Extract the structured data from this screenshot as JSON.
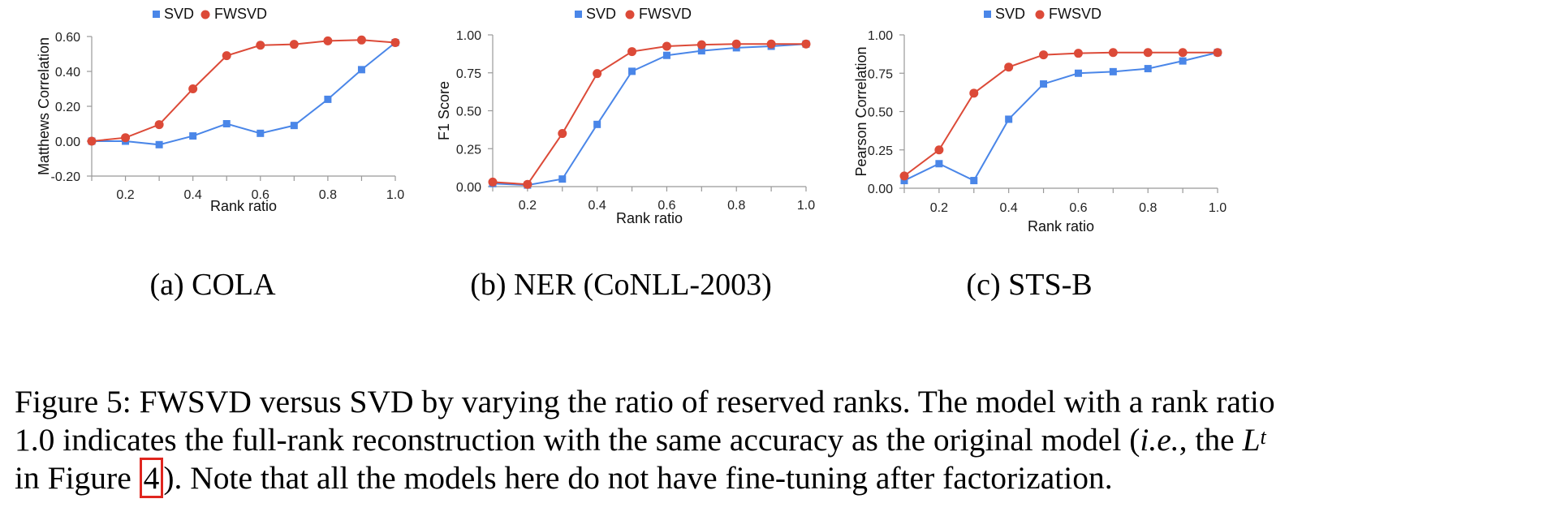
{
  "colors": {
    "svd": "#4a86e8",
    "fwsvd": "#dc4a38",
    "axis": "#999999",
    "ref_box": "#e0261f"
  },
  "legend": {
    "svd": "SVD",
    "fwsvd": "FWSVD"
  },
  "chart_data": [
    {
      "type": "line",
      "subcaption": "(a) COLA",
      "xlabel": "Rank ratio",
      "ylabel": "Matthews Correlation",
      "xlim": [
        0.1,
        1.0
      ],
      "ylim": [
        -0.2,
        0.6
      ],
      "xticks": [
        "0.2",
        "0.4",
        "0.6",
        "0.8",
        "1.0"
      ],
      "yticks": [
        "-0.20",
        "0.00",
        "0.20",
        "0.40",
        "0.60"
      ],
      "x": [
        0.1,
        0.2,
        0.3,
        0.4,
        0.5,
        0.6,
        0.7,
        0.8,
        0.9,
        1.0
      ],
      "series": [
        {
          "name": "SVD",
          "values": [
            0.0,
            0.0,
            -0.02,
            0.03,
            0.1,
            0.045,
            0.09,
            0.24,
            0.41,
            0.565
          ]
        },
        {
          "name": "FWSVD",
          "values": [
            0.0,
            0.02,
            0.095,
            0.3,
            0.49,
            0.55,
            0.555,
            0.575,
            0.58,
            0.565
          ]
        }
      ]
    },
    {
      "type": "line",
      "subcaption": "(b) NER (CoNLL-2003)",
      "xlabel": "Rank ratio",
      "ylabel": "F1 Score",
      "xlim": [
        0.1,
        1.0
      ],
      "ylim": [
        0.0,
        1.0
      ],
      "xticks": [
        "0.2",
        "0.4",
        "0.6",
        "0.8",
        "1.0"
      ],
      "yticks": [
        "0.00",
        "0.25",
        "0.50",
        "0.75",
        "1.00"
      ],
      "x": [
        0.1,
        0.2,
        0.3,
        0.4,
        0.5,
        0.6,
        0.7,
        0.8,
        0.9,
        1.0
      ],
      "series": [
        {
          "name": "SVD",
          "values": [
            0.02,
            0.01,
            0.05,
            0.41,
            0.76,
            0.865,
            0.895,
            0.915,
            0.925,
            0.94
          ]
        },
        {
          "name": "FWSVD",
          "values": [
            0.03,
            0.015,
            0.35,
            0.745,
            0.89,
            0.925,
            0.935,
            0.94,
            0.94,
            0.94
          ]
        }
      ]
    },
    {
      "type": "line",
      "subcaption": "(c) STS-B",
      "xlabel": "Rank ratio",
      "ylabel": "Pearson Correlation",
      "xlim": [
        0.1,
        1.0
      ],
      "ylim": [
        0.0,
        1.0
      ],
      "xticks": [
        "0.2",
        "0.4",
        "0.6",
        "0.8",
        "1.0"
      ],
      "yticks": [
        "0.00",
        "0.25",
        "0.50",
        "0.75",
        "1.00"
      ],
      "x": [
        0.1,
        0.2,
        0.3,
        0.4,
        0.5,
        0.6,
        0.7,
        0.8,
        0.9,
        1.0
      ],
      "series": [
        {
          "name": "SVD",
          "values": [
            0.05,
            0.16,
            0.05,
            0.45,
            0.68,
            0.75,
            0.76,
            0.78,
            0.83,
            0.885
          ]
        },
        {
          "name": "FWSVD",
          "values": [
            0.08,
            0.25,
            0.62,
            0.79,
            0.87,
            0.88,
            0.885,
            0.885,
            0.885,
            0.885
          ]
        }
      ]
    }
  ],
  "caption": {
    "line1": "Figure 5: FWSVD versus SVD by varying the ratio of reserved ranks. The model with a rank ratio",
    "line2_a": "1.0 indicates the full-rank reconstruction with the same accuracy as the original model (",
    "line2_ie": "i.e.",
    "line2_b": ", the ",
    "line2_L": "L",
    "line2_t": "t",
    "line3_a": "in Figure ",
    "line3_ref": "4",
    "line3_b": "). Note that all the models here do not have fine-tuning after factorization."
  }
}
